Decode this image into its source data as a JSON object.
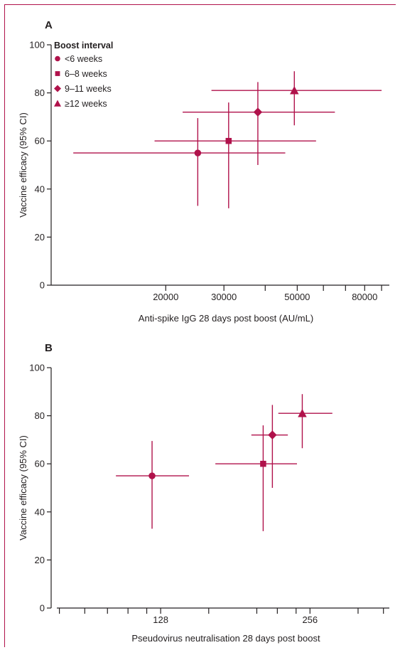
{
  "chart_data": [
    {
      "panel": "A",
      "type": "scatter",
      "xlabel": "Anti-spike IgG 28 days post boost (AU/mL)",
      "ylabel": "Vaccine efficacy (95% CI)",
      "x_scale": "log",
      "xlim": [
        9000,
        95000
      ],
      "ylim": [
        0,
        100
      ],
      "x_ticks": [
        20000,
        30000,
        50000,
        80000
      ],
      "x_minor_ticks": [
        40000,
        60000,
        70000,
        90000
      ],
      "y_ticks": [
        0,
        20,
        40,
        60,
        80,
        100
      ],
      "legend": {
        "title": "Boost interval",
        "placement": "top-left",
        "entries": [
          "<6 weeks",
          "6–8 weeks",
          "9–11 weeks",
          "≥12 weeks"
        ]
      },
      "series": [
        {
          "name": "<6 weeks",
          "marker": "circle",
          "x": 25000,
          "x_low": 10500,
          "x_high": 46000,
          "y": 55,
          "y_low": 33,
          "y_high": 69.5
        },
        {
          "name": "6–8 weeks",
          "marker": "square",
          "x": 31000,
          "x_low": 18500,
          "x_high": 57000,
          "y": 60,
          "y_low": 32,
          "y_high": 76
        },
        {
          "name": "9–11 weeks",
          "marker": "diamond",
          "x": 38000,
          "x_low": 22500,
          "x_high": 65000,
          "y": 72,
          "y_low": 50,
          "y_high": 84.5
        },
        {
          "name": "≥12 weeks",
          "marker": "triangle",
          "x": 49000,
          "x_low": 27500,
          "x_high": 90000,
          "y": 81,
          "y_low": 66.5,
          "y_high": 89
        }
      ]
    },
    {
      "panel": "B",
      "type": "scatter",
      "xlabel": "Pseudovirus neutralisation 28 days post boost",
      "ylabel": "Vaccine efficacy (95% CI)",
      "x_scale": "log2",
      "xlim": [
        77,
        370
      ],
      "ylim": [
        0,
        100
      ],
      "x_ticks": [
        128,
        256
      ],
      "x_minor_ticks": [
        80,
        90,
        100,
        110,
        120,
        160,
        200,
        220,
        240,
        320,
        360
      ],
      "y_ticks": [
        0,
        20,
        40,
        60,
        80,
        100
      ],
      "series": [
        {
          "name": "<6 weeks",
          "marker": "circle",
          "x": 123,
          "x_low": 104,
          "x_high": 146,
          "y": 55,
          "y_low": 33,
          "y_high": 69.5
        },
        {
          "name": "6–8 weeks",
          "marker": "square",
          "x": 206,
          "x_low": 165,
          "x_high": 241,
          "y": 60,
          "y_low": 32,
          "y_high": 76
        },
        {
          "name": "9–11 weeks",
          "marker": "diamond",
          "x": 215,
          "x_low": 195,
          "x_high": 231,
          "y": 72,
          "y_low": 50,
          "y_high": 84.5
        },
        {
          "name": "≥12 weeks",
          "marker": "triangle",
          "x": 247,
          "x_low": 221,
          "x_high": 284,
          "y": 81,
          "y_low": 66.5,
          "y_high": 89
        }
      ]
    }
  ],
  "colors": {
    "series": "#b0124b",
    "axis": "#231f20",
    "frame": "#b0124b"
  }
}
